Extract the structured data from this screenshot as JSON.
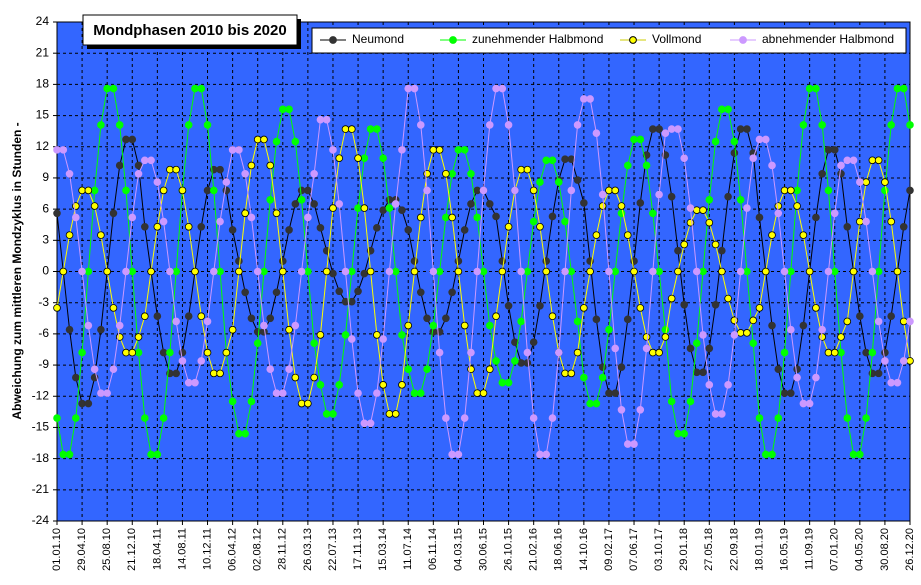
{
  "chart_data": {
    "type": "line",
    "title": "Mondphasen 2010 bis 2020",
    "y_label": "Abweichung zum mittleren Mondzyklus in Stunden  -",
    "legend": "top",
    "grid": true,
    "plot_background": "#3366ff",
    "ylim": [
      -24,
      24
    ],
    "yticks": [
      -24,
      -21,
      -18,
      -15,
      -12,
      -9,
      -6,
      -3,
      0,
      3,
      6,
      9,
      12,
      15,
      18,
      21,
      24
    ],
    "categories": [
      "01.01.10",
      null,
      null,
      null,
      "29.04.10",
      null,
      null,
      null,
      "25.08.10",
      null,
      null,
      null,
      "21.12.10",
      null,
      null,
      null,
      "18.04.11",
      null,
      null,
      null,
      "14.08.11",
      null,
      null,
      null,
      "10.12.11",
      null,
      null,
      null,
      "06.04.12",
      null,
      null,
      null,
      "02.08.12",
      null,
      null,
      null,
      "28.11.12",
      null,
      null,
      null,
      "26.03.13",
      null,
      null,
      null,
      "22.07.13",
      null,
      null,
      null,
      "17.11.13",
      null,
      null,
      null,
      "15.03.14",
      null,
      null,
      null,
      "11.07.14",
      null,
      null,
      null,
      "06.11.14",
      null,
      null,
      null,
      "04.03.15",
      null,
      null,
      null,
      "30.06.15",
      null,
      null,
      null,
      "26.10.15",
      null,
      null,
      null,
      "21.02.16",
      null,
      null,
      null,
      "18.06.16",
      null,
      null,
      null,
      "14.10.16",
      null,
      null,
      null,
      "09.02.17",
      null,
      null,
      null,
      "07.06.17",
      null,
      null,
      null,
      "03.10.17",
      null,
      null,
      null,
      "29.01.18",
      null,
      null,
      null,
      "27.05.18",
      null,
      null,
      null,
      "22.09.18",
      null,
      null,
      null,
      "18.01.19",
      null,
      null,
      null,
      "16.05.19",
      null,
      null,
      null,
      "11.09.19",
      null,
      null,
      null,
      "07.01.20",
      null,
      null,
      null,
      "04.05.20",
      null,
      null,
      null,
      "30.08.20",
      null,
      null,
      null,
      "26.12.20"
    ],
    "series": [
      {
        "name": "Neumond",
        "color": "#000000",
        "marker": "#333333",
        "values": [
          5.6,
          0,
          -5.6,
          -10.2,
          -12.7,
          -12.7,
          -10.2,
          -5.6,
          0,
          5.6,
          10.2,
          12.7,
          12.7,
          10.2,
          4.3,
          0,
          -4.3,
          -7.8,
          -9.8,
          -9.8,
          -7.8,
          -4.3,
          0,
          4.3,
          7.8,
          9.8,
          9.8,
          7.8,
          4.0,
          1,
          -2.0,
          -4.5,
          -5.8,
          -5.8,
          -4.5,
          -2.0,
          1,
          4.0,
          6.5,
          7.8,
          7.8,
          6.5,
          4.2,
          2,
          -0.2,
          -1.9,
          -2.9,
          -2.9,
          -1.9,
          -0.2,
          2,
          4.2,
          5.9,
          6.9,
          6.9,
          5.9,
          4.0,
          1,
          -2.0,
          -4.5,
          -5.8,
          -5.8,
          -4.5,
          -2.0,
          1,
          4.0,
          6.5,
          7.8,
          7.8,
          6.5,
          5.3,
          1,
          -3.3,
          -6.8,
          -8.8,
          -8.8,
          -6.8,
          -3.3,
          1,
          5.3,
          8.8,
          10.8,
          10.8,
          8.8,
          6.6,
          1,
          -4.6,
          -9.2,
          -11.7,
          -11.7,
          -9.2,
          -4.6,
          1,
          6.6,
          11.2,
          13.7,
          13.7,
          11.2,
          7.2,
          2,
          -3.2,
          -7.4,
          -9.7,
          -9.7,
          -7.4,
          -3.2,
          2,
          7.2,
          11.4,
          13.7,
          13.7,
          11.4,
          5.2,
          0,
          -5.2,
          -9.4,
          -11.7,
          -11.7,
          -9.4,
          -5.2,
          0,
          5.2,
          9.4,
          11.7,
          11.7,
          9.4,
          4.3,
          0,
          -4.3,
          -7.8,
          -9.8,
          -9.8,
          -7.8,
          -4.3,
          0,
          4.3,
          7.8
        ]
      },
      {
        "name": "zunehmender Halbmond",
        "color": "#00ff00",
        "marker": "#00ff00",
        "values": [
          -14.1,
          -17.6,
          -17.6,
          -14.1,
          -7.8,
          0,
          7.8,
          14.1,
          17.6,
          17.6,
          14.1,
          7.8,
          0,
          -7.8,
          -14.1,
          -17.6,
          -17.6,
          -14.1,
          -7.8,
          0,
          7.8,
          14.1,
          17.6,
          17.6,
          14.1,
          7.8,
          0,
          -7.8,
          -12.5,
          -15.6,
          -15.6,
          -12.5,
          -6.9,
          0,
          6.9,
          12.5,
          15.6,
          15.6,
          12.5,
          6.9,
          0,
          -6.9,
          -10.9,
          -13.7,
          -13.7,
          -10.9,
          -6.1,
          0,
          6.1,
          10.9,
          13.7,
          13.7,
          10.9,
          6.1,
          0,
          -6.1,
          -9.4,
          -11.7,
          -11.7,
          -9.4,
          -5.2,
          0,
          5.2,
          9.4,
          11.7,
          11.7,
          9.4,
          5.2,
          0,
          -5.2,
          -8.6,
          -10.7,
          -10.7,
          -8.6,
          -4.8,
          0,
          4.8,
          8.6,
          10.7,
          10.7,
          8.6,
          4.8,
          0,
          -4.8,
          -10.2,
          -12.7,
          -12.7,
          -10.2,
          -5.6,
          0,
          5.6,
          10.2,
          12.7,
          12.7,
          10.2,
          5.6,
          0,
          -5.6,
          -12.5,
          -15.6,
          -15.6,
          -12.5,
          -6.9,
          0,
          6.9,
          12.5,
          15.6,
          15.6,
          12.5,
          6.9,
          0,
          -6.9,
          -14.1,
          -17.6,
          -17.6,
          -14.1,
          -7.8,
          0,
          7.8,
          14.1,
          17.6,
          17.6,
          14.1,
          7.8,
          0,
          -7.8,
          -14.1,
          -17.6,
          -17.6,
          -14.1,
          -7.8,
          0,
          7.8,
          14.1,
          17.6,
          17.6,
          14.1
        ]
      },
      {
        "name": "Vollmond",
        "color": "#ffff00",
        "marker": "#ffff00",
        "values": [
          -3.5,
          0,
          3.5,
          6.3,
          7.8,
          7.8,
          6.3,
          3.5,
          0,
          -3.5,
          -6.3,
          -7.8,
          -7.8,
          -6.3,
          -4.3,
          0,
          4.3,
          7.8,
          9.8,
          9.8,
          7.8,
          4.3,
          0,
          -4.3,
          -7.8,
          -9.8,
          -9.8,
          -7.8,
          -5.6,
          0,
          5.6,
          10.2,
          12.7,
          12.7,
          10.2,
          5.6,
          0,
          -5.6,
          -10.2,
          -12.7,
          -12.7,
          -10.2,
          -6.1,
          0,
          6.1,
          10.9,
          13.7,
          13.7,
          10.9,
          6.1,
          0,
          -6.1,
          -10.9,
          -13.7,
          -13.7,
          -10.9,
          -5.2,
          0,
          5.2,
          9.4,
          11.7,
          11.7,
          9.4,
          5.2,
          0,
          -5.2,
          -9.4,
          -11.7,
          -11.7,
          -9.4,
          -4.3,
          0,
          4.3,
          7.8,
          9.8,
          9.8,
          7.8,
          4.3,
          0,
          -4.3,
          -7.8,
          -9.8,
          -9.8,
          -7.8,
          -3.5,
          0,
          3.5,
          6.3,
          7.8,
          7.8,
          6.3,
          3.5,
          0,
          -3.5,
          -6.3,
          -7.8,
          -7.8,
          -6.3,
          -2.6,
          0,
          2.6,
          4.7,
          5.9,
          5.9,
          4.7,
          2.6,
          0,
          -2.6,
          -4.7,
          -5.9,
          -5.9,
          -4.7,
          -3.5,
          0,
          3.5,
          6.3,
          7.8,
          7.8,
          6.3,
          3.5,
          0,
          -3.5,
          -6.3,
          -7.8,
          -7.8,
          -6.3,
          -4.8,
          0,
          4.8,
          8.6,
          10.7,
          10.7,
          8.6,
          4.8,
          0,
          -4.8,
          -8.6
        ]
      },
      {
        "name": "abnehmender Halbmond",
        "color": "#cc99ff",
        "marker": "#cc99ff",
        "values": [
          11.7,
          11.7,
          9.4,
          5.2,
          0,
          -5.2,
          -9.4,
          -11.7,
          -11.7,
          -9.4,
          -5.2,
          0,
          5.2,
          9.4,
          10.7,
          10.7,
          8.6,
          4.8,
          0,
          -4.8,
          -8.6,
          -10.7,
          -10.7,
          -8.6,
          -4.8,
          0,
          4.8,
          8.6,
          11.7,
          11.7,
          9.4,
          5.2,
          0,
          -5.2,
          -9.4,
          -11.7,
          -11.7,
          -9.4,
          -5.2,
          0,
          5.2,
          9.4,
          14.6,
          14.6,
          11.7,
          6.5,
          0,
          -6.5,
          -11.7,
          -14.6,
          -14.6,
          -11.7,
          -6.5,
          0,
          6.5,
          11.7,
          17.6,
          17.6,
          14.1,
          7.8,
          0,
          -7.8,
          -14.1,
          -17.6,
          -17.6,
          -14.1,
          -7.8,
          0,
          7.8,
          14.1,
          17.6,
          17.6,
          14.1,
          7.8,
          0,
          -7.8,
          -14.1,
          -17.6,
          -17.6,
          -14.1,
          -7.8,
          0,
          7.8,
          14.1,
          16.6,
          16.6,
          13.3,
          7.4,
          0,
          -7.4,
          -13.3,
          -16.6,
          -16.6,
          -13.3,
          -7.4,
          0,
          7.4,
          13.3,
          13.7,
          13.7,
          10.9,
          6.1,
          0,
          -6.1,
          -10.9,
          -13.7,
          -13.7,
          -10.9,
          -6.1,
          0,
          6.1,
          10.9,
          12.7,
          12.7,
          10.2,
          5.6,
          0,
          -5.6,
          -10.2,
          -12.7,
          -12.7,
          -10.2,
          -5.6,
          0,
          5.6,
          10.2,
          10.7,
          10.7,
          8.6,
          4.8,
          0,
          -4.8,
          -8.6,
          -10.7,
          -10.7,
          -8.6,
          -4.8
        ]
      }
    ]
  }
}
